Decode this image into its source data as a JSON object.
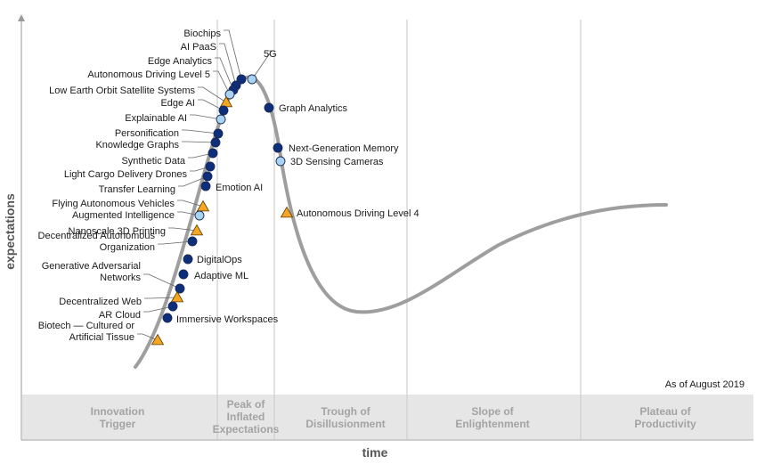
{
  "chart_data": {
    "type": "scatter",
    "title": "",
    "xlabel": "time",
    "ylabel": "expectations",
    "as_of": "As of August 2019",
    "phases": [
      [
        "Innovation",
        "Trigger"
      ],
      [
        "Peak of",
        "Inflated",
        "Expectations"
      ],
      [
        "Trough of",
        "Disillusionment"
      ],
      [
        "Slope of",
        "Enlightenment"
      ],
      [
        "Plateau of",
        "Productivity"
      ]
    ],
    "legend": {
      "dark_circle": "#0d2e7a",
      "light_circle": "#a9d3f2",
      "triangle": "#f5a623",
      "curve": "#9e9e9e"
    },
    "points": [
      {
        "lines": [
          "Biochips"
        ],
        "marker": "dark"
      },
      {
        "lines": [
          "AI PaaS"
        ],
        "marker": "dark"
      },
      {
        "lines": [
          "5G"
        ],
        "marker": "light"
      },
      {
        "lines": [
          "Edge Analytics"
        ],
        "marker": "dark"
      },
      {
        "lines": [
          "Autonomous Driving Level 5"
        ],
        "marker": "light"
      },
      {
        "lines": [
          "Low Earth Orbit Satellite Systems"
        ],
        "marker": "triangle"
      },
      {
        "lines": [
          "Edge AI"
        ],
        "marker": "dark"
      },
      {
        "lines": [
          "Graph Analytics"
        ],
        "marker": "dark"
      },
      {
        "lines": [
          "Explainable AI"
        ],
        "marker": "light"
      },
      {
        "lines": [
          "Personification"
        ],
        "marker": "dark"
      },
      {
        "lines": [
          "Knowledge Graphs"
        ],
        "marker": "dark"
      },
      {
        "lines": [
          "Next-Generation Memory"
        ],
        "marker": "dark"
      },
      {
        "lines": [
          "3D Sensing Cameras"
        ],
        "marker": "light"
      },
      {
        "lines": [
          "Synthetic Data"
        ],
        "marker": "dark"
      },
      {
        "lines": [
          "Light Cargo Delivery Drones"
        ],
        "marker": "dark"
      },
      {
        "lines": [
          "Emotion AI"
        ],
        "marker": "dark"
      },
      {
        "lines": [
          "Transfer Learning"
        ],
        "marker": "dark"
      },
      {
        "lines": [
          "Flying Autonomous Vehicles"
        ],
        "marker": "triangle"
      },
      {
        "lines": [
          "Augmented Intelligence"
        ],
        "marker": "light"
      },
      {
        "lines": [
          "Autonomous Driving Level 4"
        ],
        "marker": "triangle"
      },
      {
        "lines": [
          "Nanoscale 3D Printing"
        ],
        "marker": "triangle"
      },
      {
        "lines": [
          "Decentralized Autonomous",
          "Organization"
        ],
        "marker": "dark"
      },
      {
        "lines": [
          "DigitalOps"
        ],
        "marker": "dark"
      },
      {
        "lines": [
          "Adaptive ML"
        ],
        "marker": "dark"
      },
      {
        "lines": [
          "Generative Adversarial",
          "Networks"
        ],
        "marker": "dark"
      },
      {
        "lines": [
          "Decentralized Web"
        ],
        "marker": "triangle"
      },
      {
        "lines": [
          "AR Cloud"
        ],
        "marker": "dark"
      },
      {
        "lines": [
          "Immersive Workspaces"
        ],
        "marker": "dark"
      },
      {
        "lines": [
          "Biotech — Cultured or",
          "Artificial Tissue"
        ],
        "marker": "triangle"
      }
    ]
  }
}
